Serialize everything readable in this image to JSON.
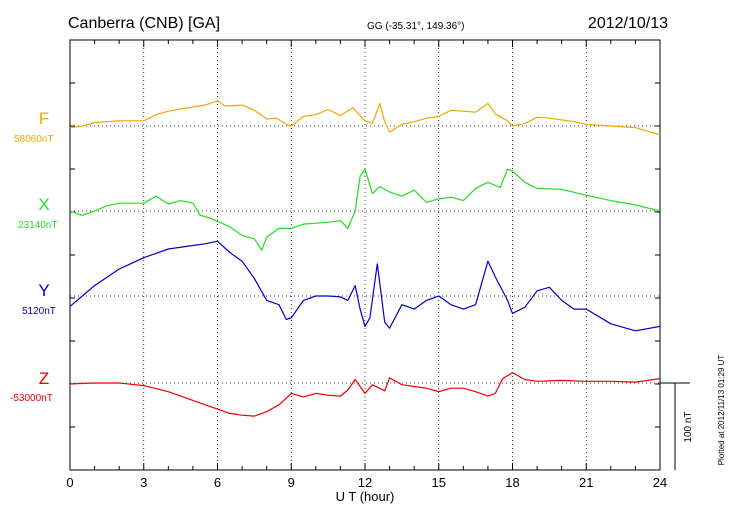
{
  "header": {
    "station": "Canberra (CNB)  [GA]",
    "coords": "GG (-35.31°, 149.36°)",
    "date": "2012/10/13"
  },
  "chart_data": {
    "type": "line",
    "xlabel": "U T (hour)",
    "xlim": [
      0,
      24
    ],
    "x_ticks": [
      "0",
      "3",
      "6",
      "9",
      "12",
      "15",
      "18",
      "21",
      "24"
    ],
    "scale_bar_label": "100 nT",
    "plotted_note": "Plotted at 2012/11/13 01:29 UT",
    "series": [
      {
        "name": "F",
        "baseline_label": "58060nT",
        "color": "#f0a800",
        "points": [
          [
            0,
            -2
          ],
          [
            0.5,
            0
          ],
          [
            1,
            4
          ],
          [
            2,
            6
          ],
          [
            3,
            6
          ],
          [
            3.5,
            13
          ],
          [
            4,
            17
          ],
          [
            5,
            22
          ],
          [
            5.5,
            24
          ],
          [
            6,
            29
          ],
          [
            6.3,
            23
          ],
          [
            7,
            24
          ],
          [
            7.5,
            18
          ],
          [
            8,
            8
          ],
          [
            8.4,
            9
          ],
          [
            8.8,
            2
          ],
          [
            9,
            0
          ],
          [
            9.5,
            11
          ],
          [
            10,
            13
          ],
          [
            10.5,
            19
          ],
          [
            11,
            12
          ],
          [
            11.5,
            21
          ],
          [
            12,
            6
          ],
          [
            12.3,
            3
          ],
          [
            12.6,
            26
          ],
          [
            12.8,
            5
          ],
          [
            13,
            -7
          ],
          [
            13.5,
            2
          ],
          [
            14,
            5
          ],
          [
            14.5,
            9
          ],
          [
            15,
            11
          ],
          [
            15.5,
            18
          ],
          [
            16,
            17
          ],
          [
            16.5,
            16
          ],
          [
            17,
            26
          ],
          [
            17.3,
            14
          ],
          [
            17.8,
            6
          ],
          [
            18,
            0
          ],
          [
            18.5,
            3
          ],
          [
            19,
            10
          ],
          [
            19.5,
            9
          ],
          [
            20,
            7
          ],
          [
            20.5,
            5
          ],
          [
            21,
            2
          ],
          [
            22,
            0
          ],
          [
            23,
            -2
          ],
          [
            24,
            -10
          ]
        ]
      },
      {
        "name": "X",
        "baseline_label": "23140nT",
        "color": "#22dd22",
        "points": [
          [
            0,
            0
          ],
          [
            0.5,
            -5
          ],
          [
            1,
            0
          ],
          [
            1.5,
            6
          ],
          [
            2,
            9
          ],
          [
            3,
            9
          ],
          [
            3.5,
            17
          ],
          [
            4,
            8
          ],
          [
            4.5,
            12
          ],
          [
            5,
            9
          ],
          [
            5.3,
            -5
          ],
          [
            5.7,
            -8
          ],
          [
            6,
            -12
          ],
          [
            6.5,
            -18
          ],
          [
            7,
            -28
          ],
          [
            7.5,
            -32
          ],
          [
            7.8,
            -45
          ],
          [
            8,
            -30
          ],
          [
            8.5,
            -20
          ],
          [
            9,
            -20
          ],
          [
            9.5,
            -15
          ],
          [
            10,
            -14
          ],
          [
            10.5,
            -13
          ],
          [
            11,
            -11
          ],
          [
            11.3,
            -20
          ],
          [
            11.6,
            0
          ],
          [
            11.8,
            40
          ],
          [
            12,
            48
          ],
          [
            12.3,
            20
          ],
          [
            12.6,
            28
          ],
          [
            13,
            22
          ],
          [
            13.5,
            17
          ],
          [
            14,
            24
          ],
          [
            14.5,
            10
          ],
          [
            15,
            14
          ],
          [
            15.5,
            16
          ],
          [
            16,
            12
          ],
          [
            16.5,
            26
          ],
          [
            17,
            33
          ],
          [
            17.5,
            27
          ],
          [
            17.8,
            48
          ],
          [
            18,
            46
          ],
          [
            18.5,
            33
          ],
          [
            19,
            26
          ],
          [
            20,
            25
          ],
          [
            21,
            18
          ],
          [
            22,
            12
          ],
          [
            23,
            7
          ],
          [
            24,
            0
          ]
        ]
      },
      {
        "name": "Y",
        "baseline_label": "5120nT",
        "color": "#0000cc",
        "points": [
          [
            0,
            -12
          ],
          [
            0.5,
            0
          ],
          [
            1,
            12
          ],
          [
            2,
            31
          ],
          [
            3,
            44
          ],
          [
            3.5,
            49
          ],
          [
            4,
            54
          ],
          [
            5,
            58
          ],
          [
            5.5,
            60
          ],
          [
            6,
            63
          ],
          [
            6.5,
            50
          ],
          [
            7,
            40
          ],
          [
            7.5,
            20
          ],
          [
            8,
            -5
          ],
          [
            8.5,
            -10
          ],
          [
            8.8,
            -27
          ],
          [
            9,
            -25
          ],
          [
            9.5,
            -5
          ],
          [
            10,
            0
          ],
          [
            10.5,
            0
          ],
          [
            11,
            -1
          ],
          [
            11.3,
            -5
          ],
          [
            11.6,
            12
          ],
          [
            11.8,
            -15
          ],
          [
            12,
            -35
          ],
          [
            12.2,
            -25
          ],
          [
            12.5,
            37
          ],
          [
            12.8,
            -30
          ],
          [
            13,
            -37
          ],
          [
            13.5,
            -10
          ],
          [
            14,
            -15
          ],
          [
            14.5,
            -5
          ],
          [
            15,
            0
          ],
          [
            15.5,
            -10
          ],
          [
            16,
            -15
          ],
          [
            16.5,
            -10
          ],
          [
            17,
            40
          ],
          [
            17.3,
            22
          ],
          [
            17.8,
            -5
          ],
          [
            18,
            -20
          ],
          [
            18.5,
            -13
          ],
          [
            19,
            6
          ],
          [
            19.5,
            10
          ],
          [
            20,
            -5
          ],
          [
            20.5,
            -15
          ],
          [
            21,
            -15
          ],
          [
            22,
            -32
          ],
          [
            23,
            -40
          ],
          [
            24,
            -35
          ]
        ]
      },
      {
        "name": "Z",
        "baseline_label": "-53000nT",
        "color": "#ee0000",
        "points": [
          [
            0,
            -1
          ],
          [
            1,
            0
          ],
          [
            2,
            0
          ],
          [
            3,
            -3
          ],
          [
            4,
            -10
          ],
          [
            5,
            -20
          ],
          [
            5.5,
            -25
          ],
          [
            6,
            -30
          ],
          [
            6.5,
            -35
          ],
          [
            7,
            -37
          ],
          [
            7.5,
            -38
          ],
          [
            8,
            -33
          ],
          [
            8.5,
            -25
          ],
          [
            9,
            -12
          ],
          [
            9.5,
            -16
          ],
          [
            10,
            -12
          ],
          [
            10.5,
            -14
          ],
          [
            11,
            -15
          ],
          [
            11.3,
            -8
          ],
          [
            11.6,
            4
          ],
          [
            12,
            -12
          ],
          [
            12.3,
            -2
          ],
          [
            12.8,
            -9
          ],
          [
            13,
            6
          ],
          [
            13.5,
            -2
          ],
          [
            14,
            -4
          ],
          [
            14.5,
            -6
          ],
          [
            15,
            -10
          ],
          [
            15.5,
            -6
          ],
          [
            16,
            -6
          ],
          [
            16.5,
            -10
          ],
          [
            17,
            -15
          ],
          [
            17.3,
            -12
          ],
          [
            17.6,
            5
          ],
          [
            18,
            12
          ],
          [
            18.5,
            4
          ],
          [
            19,
            2
          ],
          [
            20,
            3
          ],
          [
            21,
            2
          ],
          [
            22,
            2
          ],
          [
            23,
            1
          ],
          [
            24,
            5
          ]
        ]
      }
    ]
  }
}
